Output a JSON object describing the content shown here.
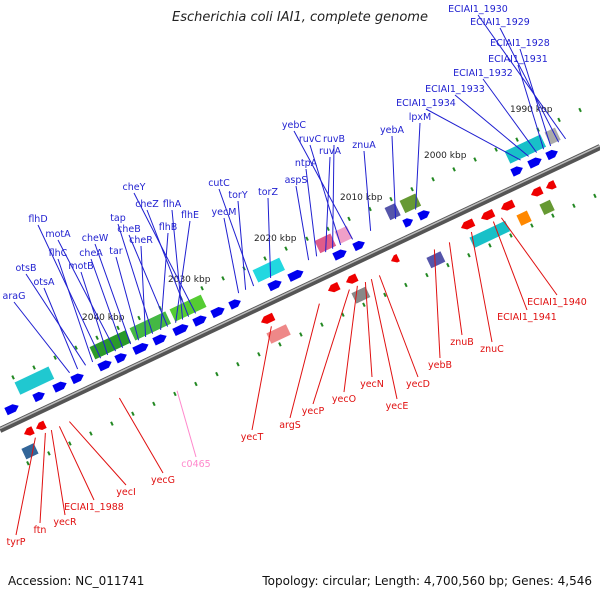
{
  "title": "Escherichia coli IAI1, complete genome",
  "footer": {
    "accession": "Accession: NC_011741",
    "topology": "Topology: circular; Length: 4,700,560 bp; Genes: 4,546"
  },
  "colors": {
    "forward_label": "#1f1fd0",
    "reverse_label": "#e01010",
    "rna_label": "#ff88cc",
    "forward_arrow": "#0000ee",
    "reverse_arrow": "#ee0000",
    "backbone": "#777777",
    "tick": "#228822"
  },
  "scale_labels": [
    "1990 kbp",
    "2000 kbp",
    "2010 kbp",
    "2020 kbp",
    "2030 kbp",
    "2040 kbp"
  ],
  "forward_genes": [
    "ECIAI1_1930",
    "ECIAI1_1929",
    "ECIAI1_1928",
    "ECIAI1_1931",
    "ECIAI1_1932",
    "ECIAI1_1933",
    "ECIAI1_1934",
    "lpxM",
    "yebA",
    "znuA",
    "yebC",
    "ruvC",
    "ruvB",
    "ruvA",
    "ntpA",
    "aspS",
    "torZ",
    "cutC",
    "torY",
    "yecM",
    "cheY",
    "cheZ",
    "flhA",
    "flhE",
    "cheB",
    "flhB",
    "tap",
    "cheR",
    "tar",
    "cheW",
    "cheA",
    "motA",
    "motB",
    "flhD",
    "flhC",
    "otsB",
    "otsA",
    "araG"
  ],
  "reverse_genes": [
    "ECIAI1_1940",
    "ECIAI1_1941",
    "znuC",
    "znuB",
    "yebB",
    "yecD",
    "yecE",
    "yecN",
    "yecO",
    "yecP",
    "argS",
    "yecT",
    "yecG",
    "yecI",
    "ECIAI1_1988",
    "yecR",
    "ftn",
    "tyrP"
  ],
  "rna_genes": [
    "c0465"
  ]
}
